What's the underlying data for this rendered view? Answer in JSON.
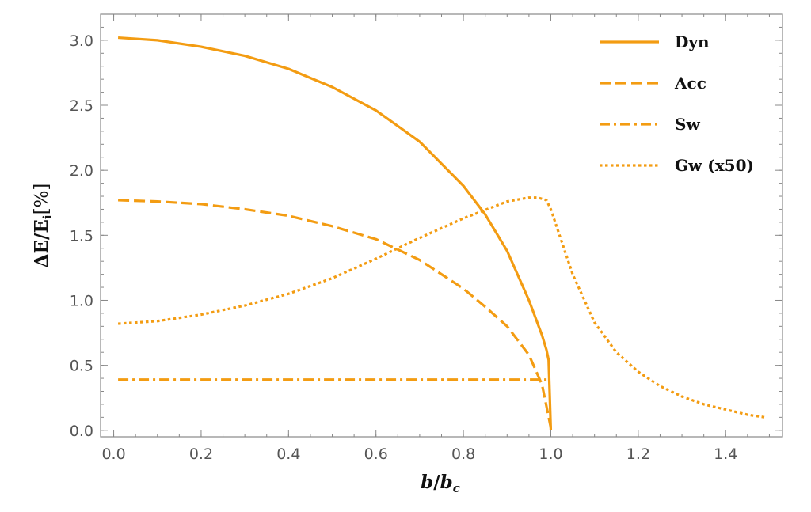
{
  "chart_data": {
    "type": "line",
    "xlabel_main": "b",
    "xlabel_sub": "c",
    "xlabel_base": "b",
    "ylabel_main": "ΔE/E",
    "ylabel_sub": "i",
    "ylabel_unit": "[%]",
    "xlim": [
      -0.03,
      1.53
    ],
    "ylim": [
      -0.05,
      3.2
    ],
    "xticks": [
      0.0,
      0.2,
      0.4,
      0.6,
      0.8,
      1.0,
      1.2,
      1.4
    ],
    "xtick_labels": [
      "0.0",
      "0.2",
      "0.4",
      "0.6",
      "0.8",
      "1.0",
      "1.2",
      "1.4"
    ],
    "yticks": [
      0.0,
      0.5,
      1.0,
      1.5,
      2.0,
      2.5,
      3.0
    ],
    "ytick_labels": [
      "0.0",
      "0.5",
      "1.0",
      "1.5",
      "2.0",
      "2.5",
      "3.0"
    ],
    "grid": false,
    "legend_position": "top-right",
    "color": "#f39c12",
    "series": [
      {
        "name": "Dyn",
        "style": "solid",
        "x": [
          0.01,
          0.1,
          0.2,
          0.3,
          0.4,
          0.5,
          0.6,
          0.7,
          0.8,
          0.85,
          0.9,
          0.95,
          0.98,
          0.99,
          0.995,
          1.0
        ],
        "y": [
          3.02,
          3.0,
          2.95,
          2.88,
          2.78,
          2.64,
          2.46,
          2.22,
          1.88,
          1.66,
          1.38,
          1.0,
          0.73,
          0.62,
          0.54,
          0.0
        ]
      },
      {
        "name": "Acc",
        "style": "dashed",
        "x": [
          0.01,
          0.1,
          0.2,
          0.3,
          0.4,
          0.5,
          0.6,
          0.7,
          0.8,
          0.85,
          0.9,
          0.95,
          0.98,
          1.0
        ],
        "y": [
          1.77,
          1.76,
          1.74,
          1.7,
          1.65,
          1.57,
          1.47,
          1.31,
          1.09,
          0.95,
          0.8,
          0.58,
          0.35,
          0.02
        ]
      },
      {
        "name": "Sw",
        "style": "dashdot",
        "x": [
          0.01,
          0.995
        ],
        "y": [
          0.39,
          0.39
        ]
      },
      {
        "name": "Gw (x50)",
        "style": "dotted",
        "x": [
          0.01,
          0.1,
          0.2,
          0.3,
          0.4,
          0.5,
          0.6,
          0.7,
          0.8,
          0.9,
          0.95,
          0.97,
          0.99,
          1.0,
          1.05,
          1.1,
          1.15,
          1.2,
          1.25,
          1.3,
          1.35,
          1.4,
          1.45,
          1.49
        ],
        "y": [
          0.82,
          0.84,
          0.89,
          0.96,
          1.05,
          1.17,
          1.32,
          1.48,
          1.63,
          1.76,
          1.79,
          1.79,
          1.77,
          1.7,
          1.2,
          0.83,
          0.6,
          0.45,
          0.34,
          0.26,
          0.2,
          0.16,
          0.12,
          0.1
        ]
      }
    ]
  }
}
